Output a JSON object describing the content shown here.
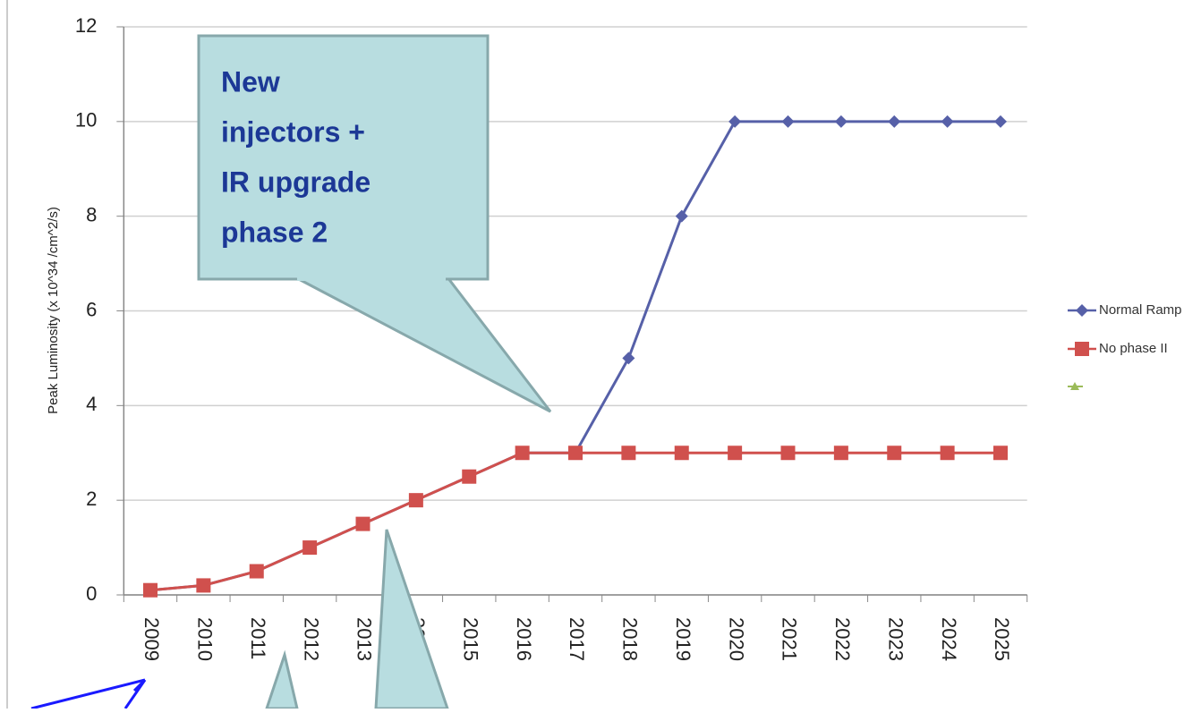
{
  "chart_data": {
    "type": "line",
    "y_label": "Peak Luminosity (x 10^34 /cm^2/s)",
    "annotation": [
      "New",
      "injectors +",
      "IR upgrade",
      "phase 2"
    ],
    "categories": [
      "2009",
      "2010",
      "2011",
      "2012",
      "2013",
      "2014",
      "2015",
      "2016",
      "2017",
      "2018",
      "2019",
      "2020",
      "2021",
      "2022",
      "2023",
      "2024",
      "2025"
    ],
    "series": [
      {
        "name": "Normal Ramp",
        "color": "#5660a8",
        "marker": "diamond",
        "values": [
          0.1,
          0.2,
          0.5,
          1,
          1.5,
          2,
          2.5,
          3,
          3,
          5,
          8,
          10,
          10,
          10,
          10,
          10,
          10
        ]
      },
      {
        "name": "No phase II",
        "color": "#d0504d",
        "marker": "square",
        "values": [
          0.1,
          0.2,
          0.5,
          1,
          1.5,
          2,
          2.5,
          3,
          3,
          3,
          3,
          3,
          3,
          3,
          3,
          3,
          3
        ]
      }
    ],
    "ylim": [
      0,
      12
    ],
    "yticks": [
      0,
      2,
      4,
      6,
      8,
      10,
      12
    ],
    "grid": true
  }
}
